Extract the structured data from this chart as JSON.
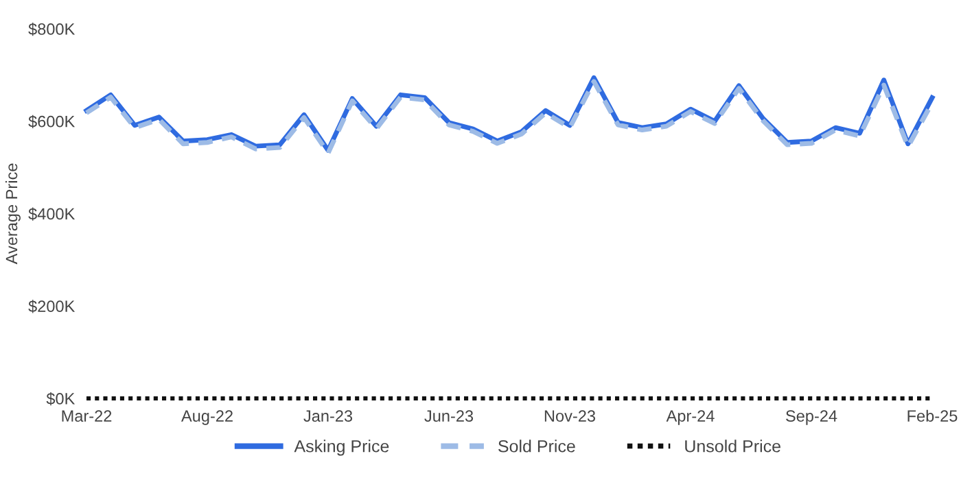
{
  "chart_data": {
    "type": "line",
    "ylabel": "Average Price",
    "categories": [
      "Mar-22",
      null,
      null,
      null,
      null,
      "Aug-22",
      null,
      null,
      null,
      null,
      "Jan-23",
      null,
      null,
      null,
      null,
      "Jun-23",
      null,
      null,
      null,
      null,
      "Nov-23",
      null,
      null,
      null,
      null,
      "Apr-24",
      null,
      null,
      null,
      null,
      "Sep-24",
      null,
      null,
      null,
      null,
      "Feb-25"
    ],
    "series": [
      {
        "name": "Asking Price",
        "color": "#2f6be0",
        "line_style": "solid",
        "values": [
          623,
          657,
          591,
          609,
          557,
          560,
          571,
          546,
          549,
          614,
          537,
          649,
          589,
          657,
          651,
          597,
          583,
          557,
          577,
          623,
          591,
          694,
          597,
          586,
          594,
          626,
          600,
          677,
          606,
          554,
          557,
          586,
          574,
          689,
          551,
          651
        ]
      },
      {
        "name": "Sold Price",
        "color": "#9dbbe6",
        "line_style": "dashed",
        "values": [
          618,
          652,
          586,
          604,
          551,
          554,
          566,
          540,
          543,
          608,
          531,
          644,
          584,
          652,
          646,
          592,
          578,
          552,
          572,
          618,
          586,
          686,
          592,
          581,
          589,
          621,
          595,
          671,
          601,
          549,
          552,
          581,
          568,
          678,
          545,
          640
        ]
      },
      {
        "name": "Unsold Price",
        "color": "#111111",
        "line_style": "dotted",
        "values": [
          0,
          0,
          0,
          0,
          0,
          0,
          0,
          0,
          0,
          0,
          0,
          0,
          0,
          0,
          0,
          0,
          0,
          0,
          0,
          0,
          0,
          0,
          0,
          0,
          0,
          0,
          0,
          0,
          0,
          0,
          0,
          0,
          0,
          0,
          0,
          0
        ]
      }
    ],
    "ylim": [
      0,
      800
    ],
    "yticks": [
      {
        "value": 0,
        "label": "$0K"
      },
      {
        "value": 200,
        "label": "$200K"
      },
      {
        "value": 400,
        "label": "$400K"
      },
      {
        "value": 600,
        "label": "$600K"
      },
      {
        "value": 800,
        "label": "$800K"
      }
    ],
    "grid": false,
    "legend": "bottom",
    "marker": "none"
  }
}
